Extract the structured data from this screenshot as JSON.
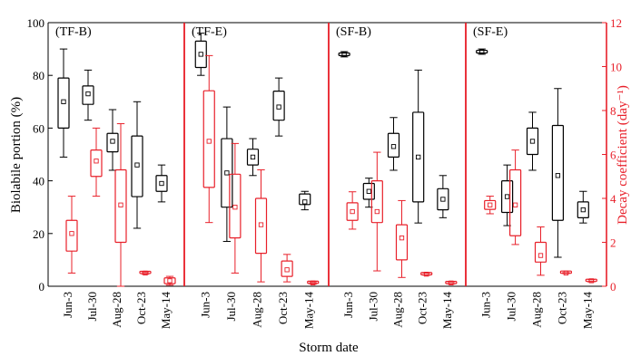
{
  "chart_data": {
    "type": "boxplot",
    "xlabel": "Storm date",
    "ylabel_left": "Biolabile portion (%)",
    "ylabel_right": "Decay coefficient (day⁻¹)",
    "ylim_left": [
      0,
      100
    ],
    "ylim_right": [
      0,
      12
    ],
    "yticks_left": [
      "0",
      "20",
      "40",
      "60",
      "80",
      "100"
    ],
    "yticks_right": [
      "0",
      "2",
      "4",
      "6",
      "8",
      "10",
      "12"
    ],
    "categories": [
      "Jun-3",
      "Jul-30",
      "Aug-28",
      "Oct-23",
      "May-14"
    ],
    "colors": {
      "biolabile": "#000000",
      "decay": "#e8202a"
    },
    "panels": [
      {
        "label": "(TF-B)",
        "biolabile": [
          {
            "min": 49,
            "q1": 60,
            "median": 70,
            "q3": 79,
            "max": 90
          },
          {
            "min": 63,
            "q1": 69,
            "median": 73,
            "q3": 76,
            "max": 82
          },
          {
            "min": 44,
            "q1": 51,
            "median": 55,
            "q3": 58,
            "max": 67
          },
          {
            "min": 22,
            "q1": 34,
            "median": 46,
            "q3": 57,
            "max": 70
          },
          {
            "min": 32,
            "q1": 36,
            "median": 39,
            "q3": 42,
            "max": 46
          }
        ],
        "decay": [
          {
            "min": 0.6,
            "q1": 1.6,
            "median": 2.4,
            "q3": 3.0,
            "max": 4.1
          },
          {
            "min": 4.1,
            "q1": 5.0,
            "median": 5.7,
            "q3": 6.2,
            "max": 7.2
          },
          {
            "min": 0.0,
            "q1": 2.0,
            "median": 3.7,
            "q3": 5.3,
            "max": 7.4
          },
          {
            "min": 0.55,
            "q1": 0.58,
            "median": 0.6,
            "q3": 0.62,
            "max": 0.65
          },
          {
            "min": 0.05,
            "q1": 0.12,
            "median": 0.25,
            "q3": 0.38,
            "max": 0.45
          }
        ]
      },
      {
        "label": "(TF-E)",
        "biolabile": [
          {
            "min": 80,
            "q1": 83,
            "median": 88,
            "q3": 93,
            "max": 96
          },
          {
            "min": 17,
            "q1": 30,
            "median": 43,
            "q3": 56,
            "max": 68
          },
          {
            "min": 42,
            "q1": 46,
            "median": 49,
            "q3": 52,
            "max": 56
          },
          {
            "min": 57,
            "q1": 63,
            "median": 68,
            "q3": 74,
            "max": 79
          },
          {
            "min": 29,
            "q1": 31,
            "median": 32,
            "q3": 35,
            "max": 36
          }
        ],
        "decay": [
          {
            "min": 2.9,
            "q1": 4.5,
            "median": 6.6,
            "q3": 8.9,
            "max": 10.5
          },
          {
            "min": 0.6,
            "q1": 2.2,
            "median": 3.6,
            "q3": 5.1,
            "max": 6.5
          },
          {
            "min": 0.2,
            "q1": 1.5,
            "median": 2.8,
            "q3": 4.0,
            "max": 5.3
          },
          {
            "min": 0.2,
            "q1": 0.45,
            "median": 0.75,
            "q3": 1.15,
            "max": 1.45
          },
          {
            "min": 0.1,
            "q1": 0.13,
            "median": 0.15,
            "q3": 0.17,
            "max": 0.2
          }
        ]
      },
      {
        "label": "(SF-B)",
        "biolabile": [
          {
            "min": 87,
            "q1": 87.5,
            "median": 88,
            "q3": 88.5,
            "max": 89
          },
          {
            "min": 30,
            "q1": 33,
            "median": 36,
            "q3": 39,
            "max": 41
          },
          {
            "min": 44,
            "q1": 49,
            "median": 53,
            "q3": 58,
            "max": 64
          },
          {
            "min": 24,
            "q1": 32,
            "median": 49,
            "q3": 66,
            "max": 82
          },
          {
            "min": 26,
            "q1": 29,
            "median": 33,
            "q3": 37,
            "max": 42
          }
        ],
        "decay": [
          {
            "min": 2.6,
            "q1": 3.0,
            "median": 3.4,
            "q3": 3.8,
            "max": 4.3
          },
          {
            "min": 0.7,
            "q1": 2.9,
            "median": 3.4,
            "q3": 4.8,
            "max": 6.1
          },
          {
            "min": 0.4,
            "q1": 1.2,
            "median": 2.2,
            "q3": 2.8,
            "max": 3.9
          },
          {
            "min": 0.5,
            "q1": 0.52,
            "median": 0.55,
            "q3": 0.58,
            "max": 0.6
          },
          {
            "min": 0.1,
            "q1": 0.12,
            "median": 0.15,
            "q3": 0.17,
            "max": 0.2
          }
        ]
      },
      {
        "label": "(SF-E)",
        "biolabile": [
          {
            "min": 88,
            "q1": 88.5,
            "median": 89,
            "q3": 89.5,
            "max": 90
          },
          {
            "min": 23,
            "q1": 28,
            "median": 34,
            "q3": 40,
            "max": 46
          },
          {
            "min": 44,
            "q1": 50,
            "median": 55,
            "q3": 60,
            "max": 66
          },
          {
            "min": 11,
            "q1": 25,
            "median": 42,
            "q3": 61,
            "max": 75
          },
          {
            "min": 24,
            "q1": 26,
            "median": 29,
            "q3": 32,
            "max": 36
          }
        ],
        "decay": [
          {
            "min": 3.3,
            "q1": 3.5,
            "median": 3.7,
            "q3": 3.9,
            "max": 4.1
          },
          {
            "min": 1.9,
            "q1": 2.3,
            "median": 3.7,
            "q3": 5.3,
            "max": 6.2
          },
          {
            "min": 0.5,
            "q1": 1.1,
            "median": 1.4,
            "q3": 2.0,
            "max": 2.7
          },
          {
            "min": 0.58,
            "q1": 0.59,
            "median": 0.6,
            "q3": 0.61,
            "max": 0.62
          },
          {
            "min": 0.2,
            "q1": 0.22,
            "median": 0.25,
            "q3": 0.28,
            "max": 0.3
          }
        ]
      }
    ]
  }
}
